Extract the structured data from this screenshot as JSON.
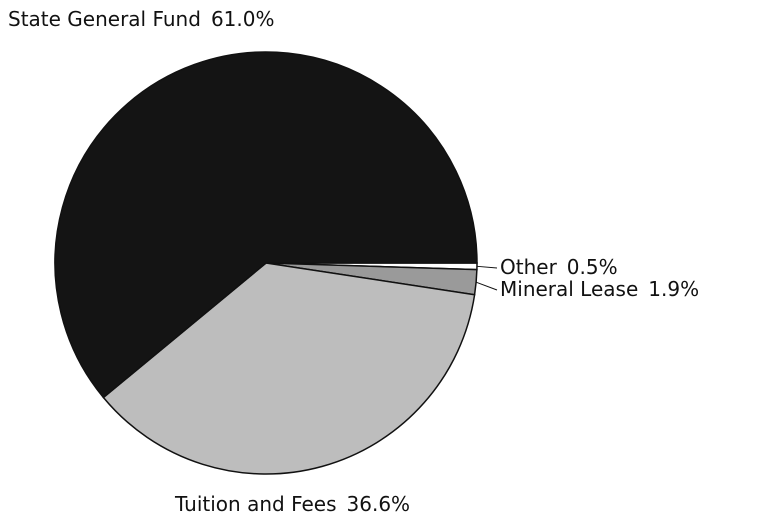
{
  "chart_data": {
    "type": "pie",
    "categories": [
      "Other",
      "Mineral Lease",
      "Tuition and Fees",
      "State General Fund"
    ],
    "values": [
      0.5,
      1.9,
      36.6,
      61.0
    ],
    "value_labels": [
      "0.5%",
      "1.9%",
      "36.6%",
      "61.0%"
    ],
    "colors": [
      "#ffffff",
      "#9a9a9a",
      "#bdbdbd",
      "#141414"
    ]
  }
}
